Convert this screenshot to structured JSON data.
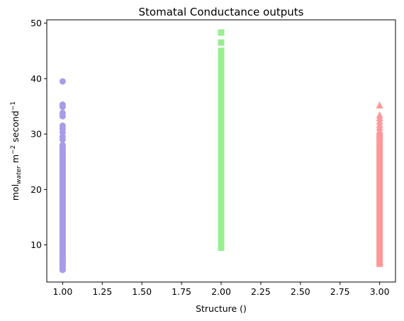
{
  "chart_data": {
    "type": "scatter",
    "title": "Stomatal Conductance outputs",
    "xlabel": "Structure ()",
    "ylabel": {
      "base": "mol",
      "subscript": "water",
      "middle": " m",
      "sup1": "−2",
      "after": " second",
      "sup2": "−1"
    },
    "xlim": [
      0.9,
      3.1
    ],
    "ylim": [
      3.3,
      50.6
    ],
    "x_ticks": [
      1.0,
      1.25,
      1.5,
      1.75,
      2.0,
      2.25,
      2.5,
      2.75,
      3.0
    ],
    "x_tick_labels": [
      "1.00",
      "1.25",
      "1.50",
      "1.75",
      "2.00",
      "2.25",
      "2.50",
      "2.75",
      "3.00"
    ],
    "y_ticks": [
      10,
      20,
      30,
      40,
      50
    ],
    "y_tick_labels": [
      "10",
      "20",
      "30",
      "40",
      "50"
    ],
    "grid": false,
    "series": [
      {
        "marker": "circle",
        "color": "#a89ce8",
        "x": 1.0,
        "range": [
          5.5,
          28.0
        ],
        "values": [
          5.5,
          6.6,
          7.3,
          29.0,
          29.5,
          30.3,
          31.0,
          31.5,
          33.2,
          33.8,
          34.9,
          35.3,
          39.5
        ]
      },
      {
        "marker": "square",
        "color": "#98ee90",
        "x": 2.0,
        "range": [
          9.5,
          41.0
        ],
        "values": [
          41.5,
          42.0,
          42.8,
          43.5,
          44.2,
          45.0,
          46.5,
          48.3
        ]
      },
      {
        "marker": "triangle",
        "color": "#ff9898",
        "x": 3.0,
        "range": [
          6.6,
          29.5
        ],
        "values": [
          30.0,
          30.6,
          31.2,
          31.7,
          32.3,
          32.9,
          33.4,
          35.2
        ]
      }
    ]
  }
}
